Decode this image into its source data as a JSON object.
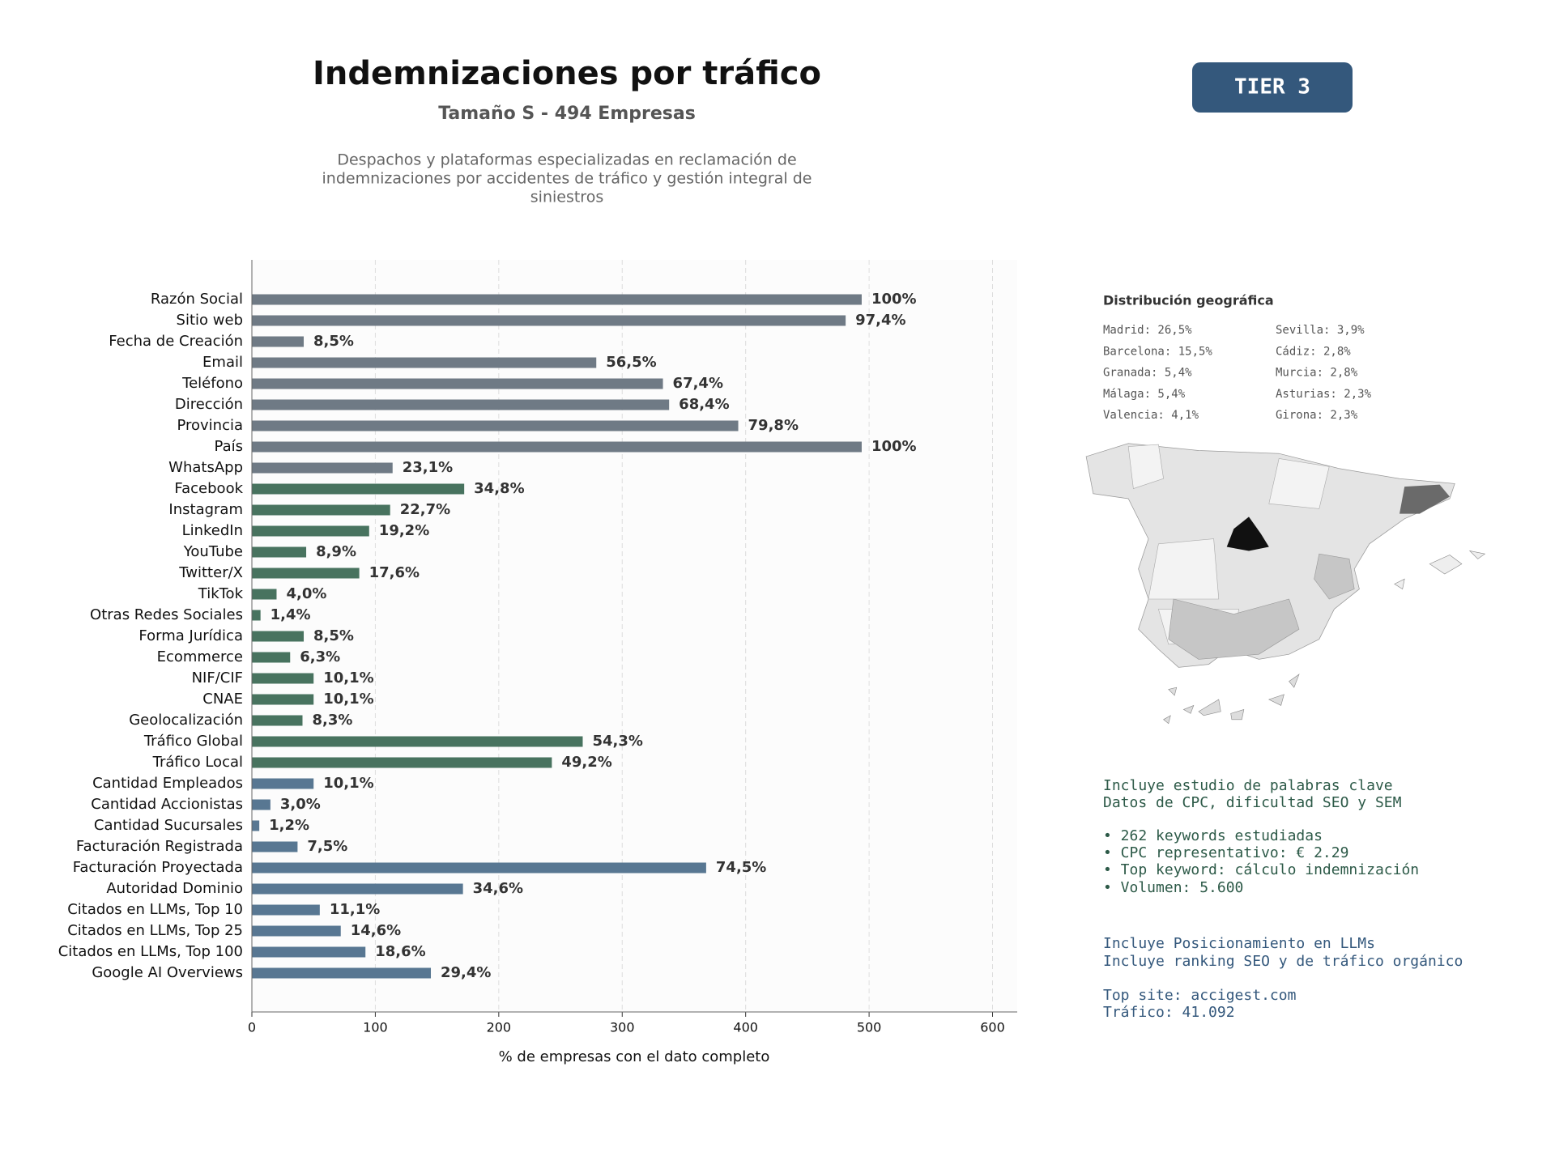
{
  "header": {
    "title": "Indemnizaciones por tráfico",
    "subtitle": "Tamaño S - 494 Empresas",
    "description": [
      "Despachos y plataformas especializadas en reclamación de",
      "indemnizaciones por accidentes de tráfico y gestión integral de",
      "siniestros"
    ],
    "badge": "TIER 3"
  },
  "chart_data": {
    "type": "barh",
    "xlabel": "% de empresas con el dato completo",
    "categories": [
      "Razón Social",
      "Sitio web",
      "Fecha de Creación",
      "Email",
      "Teléfono",
      "Dirección",
      "Provincia",
      "País",
      "WhatsApp",
      "Facebook",
      "Instagram",
      "LinkedIn",
      "YouTube",
      "Twitter/X",
      "TikTok",
      "Otras Redes Sociales",
      "Forma Jurídica",
      "Ecommerce",
      "NIF/CIF",
      "CNAE",
      "Geolocalización",
      "Tráfico Global",
      "Tráfico Local",
      "Cantidad Empleados",
      "Cantidad Accionistas",
      "Cantidad Sucursales",
      "Facturación Registrada",
      "Facturación Proyectada",
      "Autoridad Dominio",
      "Citados en LLMs, Top 10",
      "Citados en LLMs, Top 25",
      "Citados en LLMs, Top 100",
      "Google AI Overviews"
    ],
    "values": [
      494,
      481,
      42,
      279,
      333,
      338,
      394,
      494,
      114,
      172,
      112,
      95,
      44,
      87,
      20,
      7,
      42,
      31,
      50,
      50,
      41,
      268,
      243,
      50,
      15,
      6,
      37,
      368,
      171,
      55,
      72,
      92,
      145
    ],
    "value_labels": [
      "100%",
      "97,4%",
      "8,5%",
      "56,5%",
      "67,4%",
      "68,4%",
      "79,8%",
      "100%",
      "23,1%",
      "34,8%",
      "22,7%",
      "19,2%",
      "8,9%",
      "17,6%",
      "4,0%",
      "1,4%",
      "8,5%",
      "6,3%",
      "10,1%",
      "10,1%",
      "8,3%",
      "54,3%",
      "49,2%",
      "10,1%",
      "3,0%",
      "1,2%",
      "7,5%",
      "74,5%",
      "34,6%",
      "11,1%",
      "14,6%",
      "18,6%",
      "29,4%"
    ],
    "colors": [
      "#6f7a85",
      "#6f7a85",
      "#6f7a85",
      "#6f7a85",
      "#6f7a85",
      "#6f7a85",
      "#6f7a85",
      "#6f7a85",
      "#6f7a85",
      "#48735f",
      "#48735f",
      "#48735f",
      "#48735f",
      "#48735f",
      "#48735f",
      "#48735f",
      "#48735f",
      "#48735f",
      "#48735f",
      "#48735f",
      "#48735f",
      "#48735f",
      "#48735f",
      "#587792",
      "#587792",
      "#587792",
      "#587792",
      "#587792",
      "#587792",
      "#587792",
      "#587792",
      "#587792",
      "#587792"
    ],
    "xlim": [
      0,
      620
    ],
    "xticks": [
      0,
      100,
      200,
      300,
      400,
      500,
      600
    ],
    "grid": true
  },
  "geo": {
    "title": "Distribución geográfica",
    "items": [
      "Madrid: 26,5%",
      "Barcelona: 15,5%",
      "Granada: 5,4%",
      "Málaga: 5,4%",
      "Valencia: 4,1%",
      "Sevilla: 3,9%",
      "Cádiz: 2,8%",
      "Murcia: 2,8%",
      "Asturias: 2,3%",
      "Girona: 2,3%"
    ]
  },
  "keywords": [
    "Incluye estudio de palabras clave",
    "Datos de CPC, dificultad SEO y SEM",
    "• 262 keywords estudiadas",
    "• CPC representativo: € 2.29",
    "• Top keyword: cálculo indemnización",
    "• Volumen: 5.600"
  ],
  "llm": [
    "Incluye Posicionamiento en LLMs",
    "Incluye ranking SEO y de tráfico orgánico",
    "Top site: accigest.com",
    "Tráfico: 41.092"
  ]
}
